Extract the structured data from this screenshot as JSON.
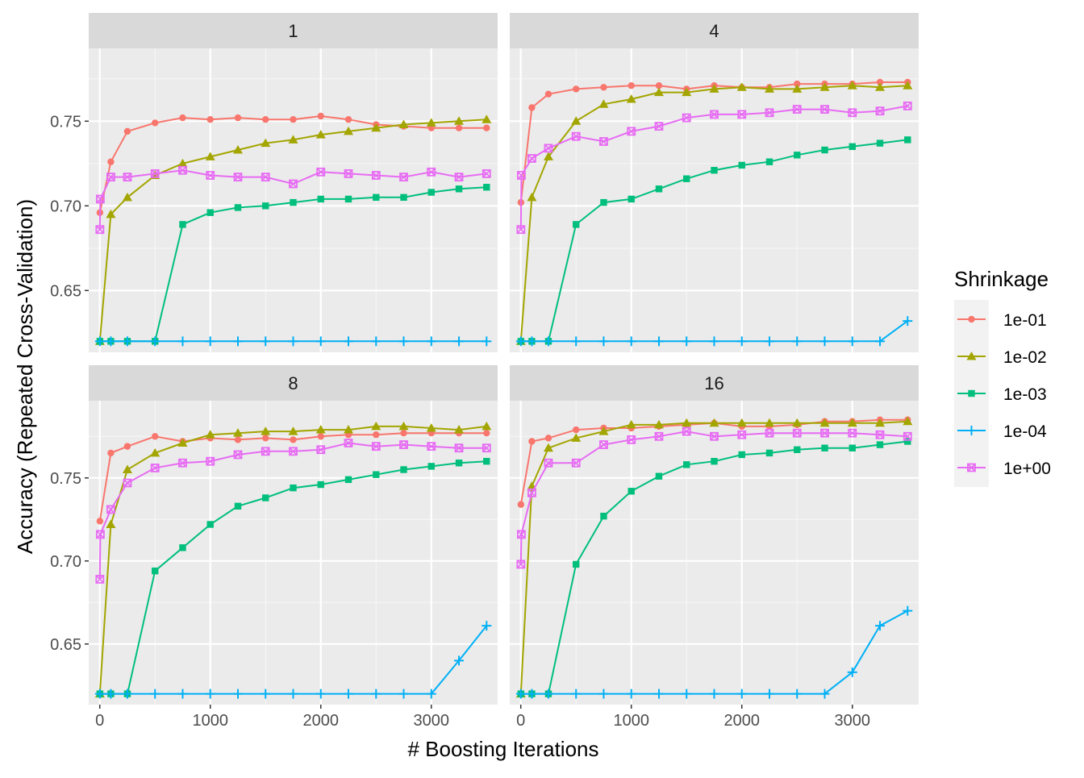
{
  "chart_data": {
    "type": "line",
    "ylabel": "Accuracy (Repeated Cross-Validation)",
    "xlabel": "# Boosting Iterations",
    "xlim": [
      -100,
      3600
    ],
    "x_ticks": [
      0,
      1000,
      2000,
      3000
    ],
    "x_tick_labels": [
      "0",
      "1000",
      "2000",
      "3000"
    ],
    "ylim_top": [
      0.6135,
      0.793
    ],
    "ylim_bottom": [
      0.6135,
      0.7965
    ],
    "y_ticks": [
      0.65,
      0.7,
      0.75
    ],
    "y_tick_labels": [
      "0.65",
      "0.70",
      "0.75"
    ],
    "grid": true,
    "legend": {
      "title": "Shrinkage",
      "position": "right",
      "entries": [
        "1e-01",
        "1e-02",
        "1e-03",
        "1e-04",
        "1e+00"
      ]
    },
    "series_style": {
      "1e-01": {
        "color": "#F8766D",
        "marker": "circle"
      },
      "1e-02": {
        "color": "#A3A500",
        "marker": "triangle"
      },
      "1e-03": {
        "color": "#00BF7D",
        "marker": "square"
      },
      "1e-04": {
        "color": "#00B0F6",
        "marker": "plus"
      },
      "1e+00": {
        "color": "#E76BF3",
        "marker": "square-x"
      }
    },
    "panels": [
      {
        "label": "1",
        "x": [
          1,
          5,
          10,
          25,
          50,
          100,
          250,
          500,
          750,
          1000,
          1250,
          1500,
          1750,
          2000,
          2250,
          2500,
          2750,
          3000,
          3250,
          3500
        ],
        "series": [
          {
            "name": "1e-01",
            "x": [
              1,
              100,
              250,
              500,
              750,
              1000,
              1250,
              1500,
              1750,
              2000,
              2250,
              2500,
              2750,
              3000,
              3250,
              3500
            ],
            "values": [
              0.696,
              0.726,
              0.744,
              0.749,
              0.752,
              0.751,
              0.752,
              0.751,
              0.751,
              0.753,
              0.751,
              0.748,
              0.747,
              0.746,
              0.746,
              0.746
            ]
          },
          {
            "name": "1e-02",
            "x": [
              1,
              100,
              250,
              500,
              750,
              1000,
              1250,
              1500,
              1750,
              2000,
              2250,
              2500,
              2750,
              3000,
              3250,
              3500
            ],
            "values": [
              0.62,
              0.695,
              0.705,
              0.718,
              0.725,
              0.729,
              0.733,
              0.737,
              0.739,
              0.742,
              0.744,
              0.746,
              0.748,
              0.749,
              0.75,
              0.751
            ]
          },
          {
            "name": "1e-03",
            "x": [
              1,
              100,
              250,
              500,
              750,
              1000,
              1250,
              1500,
              1750,
              2000,
              2250,
              2500,
              2750,
              3000,
              3250,
              3500
            ],
            "values": [
              0.62,
              0.62,
              0.62,
              0.62,
              0.689,
              0.696,
              0.699,
              0.7,
              0.702,
              0.704,
              0.704,
              0.705,
              0.705,
              0.708,
              0.71,
              0.711
            ]
          },
          {
            "name": "1e-04",
            "x": [
              1,
              100,
              250,
              500,
              750,
              1000,
              1250,
              1500,
              1750,
              2000,
              2250,
              2500,
              2750,
              3000,
              3250,
              3500
            ],
            "values": [
              0.62,
              0.62,
              0.62,
              0.62,
              0.62,
              0.62,
              0.62,
              0.62,
              0.62,
              0.62,
              0.62,
              0.62,
              0.62,
              0.62,
              0.62,
              0.62
            ]
          },
          {
            "name": "1e+00",
            "x": [
              1,
              5,
              100,
              250,
              500,
              750,
              1000,
              1250,
              1500,
              1750,
              2000,
              2250,
              2500,
              2750,
              3000,
              3250,
              3500
            ],
            "values": [
              0.686,
              0.704,
              0.717,
              0.717,
              0.719,
              0.721,
              0.718,
              0.717,
              0.717,
              0.713,
              0.72,
              0.719,
              0.718,
              0.717,
              0.72,
              0.717,
              0.719
            ]
          }
        ]
      },
      {
        "label": "4",
        "series": [
          {
            "name": "1e-01",
            "x": [
              1,
              100,
              250,
              500,
              750,
              1000,
              1250,
              1500,
              1750,
              2000,
              2250,
              2500,
              2750,
              3000,
              3250,
              3500
            ],
            "values": [
              0.702,
              0.758,
              0.766,
              0.769,
              0.77,
              0.771,
              0.771,
              0.769,
              0.771,
              0.77,
              0.77,
              0.772,
              0.772,
              0.772,
              0.773,
              0.773
            ]
          },
          {
            "name": "1e-02",
            "x": [
              1,
              100,
              250,
              500,
              750,
              1000,
              1250,
              1500,
              1750,
              2000,
              2250,
              2500,
              2750,
              3000,
              3250,
              3500
            ],
            "values": [
              0.62,
              0.705,
              0.729,
              0.75,
              0.76,
              0.763,
              0.767,
              0.767,
              0.769,
              0.77,
              0.769,
              0.769,
              0.77,
              0.771,
              0.77,
              0.771
            ]
          },
          {
            "name": "1e-03",
            "x": [
              1,
              100,
              250,
              500,
              750,
              1000,
              1250,
              1500,
              1750,
              2000,
              2250,
              2500,
              2750,
              3000,
              3250,
              3500
            ],
            "values": [
              0.62,
              0.62,
              0.62,
              0.689,
              0.702,
              0.704,
              0.71,
              0.716,
              0.721,
              0.724,
              0.726,
              0.73,
              0.733,
              0.735,
              0.737,
              0.739
            ]
          },
          {
            "name": "1e-04",
            "x": [
              1,
              100,
              250,
              500,
              750,
              1000,
              1250,
              1500,
              1750,
              2000,
              2250,
              2500,
              2750,
              3000,
              3250,
              3500
            ],
            "values": [
              0.62,
              0.62,
              0.62,
              0.62,
              0.62,
              0.62,
              0.62,
              0.62,
              0.62,
              0.62,
              0.62,
              0.62,
              0.62,
              0.62,
              0.62,
              0.632
            ]
          },
          {
            "name": "1e+00",
            "x": [
              1,
              5,
              100,
              250,
              500,
              750,
              1000,
              1250,
              1500,
              1750,
              2000,
              2250,
              2500,
              2750,
              3000,
              3250,
              3500
            ],
            "values": [
              0.686,
              0.718,
              0.728,
              0.734,
              0.741,
              0.738,
              0.744,
              0.747,
              0.752,
              0.754,
              0.754,
              0.755,
              0.757,
              0.757,
              0.755,
              0.756,
              0.759
            ]
          }
        ]
      },
      {
        "label": "8",
        "series": [
          {
            "name": "1e-01",
            "x": [
              1,
              100,
              250,
              500,
              750,
              1000,
              1250,
              1500,
              1750,
              2000,
              2250,
              2500,
              2750,
              3000,
              3250,
              3500
            ],
            "values": [
              0.724,
              0.765,
              0.769,
              0.775,
              0.772,
              0.774,
              0.773,
              0.774,
              0.773,
              0.775,
              0.776,
              0.776,
              0.777,
              0.777,
              0.777,
              0.777
            ]
          },
          {
            "name": "1e-02",
            "x": [
              1,
              100,
              250,
              500,
              750,
              1000,
              1250,
              1500,
              1750,
              2000,
              2250,
              2500,
              2750,
              3000,
              3250,
              3500
            ],
            "values": [
              0.62,
              0.722,
              0.755,
              0.765,
              0.771,
              0.776,
              0.777,
              0.778,
              0.778,
              0.779,
              0.779,
              0.781,
              0.781,
              0.78,
              0.779,
              0.781
            ]
          },
          {
            "name": "1e-03",
            "x": [
              1,
              100,
              250,
              500,
              750,
              1000,
              1250,
              1500,
              1750,
              2000,
              2250,
              2500,
              2750,
              3000,
              3250,
              3500
            ],
            "values": [
              0.62,
              0.62,
              0.62,
              0.694,
              0.708,
              0.722,
              0.733,
              0.738,
              0.744,
              0.746,
              0.749,
              0.752,
              0.755,
              0.757,
              0.759,
              0.76
            ]
          },
          {
            "name": "1e-04",
            "x": [
              1,
              100,
              250,
              500,
              750,
              1000,
              1250,
              1500,
              1750,
              2000,
              2250,
              2500,
              2750,
              3000,
              3250,
              3500
            ],
            "values": [
              0.62,
              0.62,
              0.62,
              0.62,
              0.62,
              0.62,
              0.62,
              0.62,
              0.62,
              0.62,
              0.62,
              0.62,
              0.62,
              0.62,
              0.64,
              0.661
            ]
          },
          {
            "name": "1e+00",
            "x": [
              1,
              5,
              100,
              250,
              500,
              750,
              1000,
              1250,
              1500,
              1750,
              2000,
              2250,
              2500,
              2750,
              3000,
              3250,
              3500
            ],
            "values": [
              0.689,
              0.716,
              0.731,
              0.747,
              0.756,
              0.759,
              0.76,
              0.764,
              0.766,
              0.766,
              0.767,
              0.771,
              0.769,
              0.77,
              0.769,
              0.768,
              0.768
            ]
          }
        ]
      },
      {
        "label": "16",
        "series": [
          {
            "name": "1e-01",
            "x": [
              1,
              100,
              250,
              500,
              750,
              1000,
              1250,
              1500,
              1750,
              2000,
              2250,
              2500,
              2750,
              3000,
              3250,
              3500
            ],
            "values": [
              0.734,
              0.772,
              0.774,
              0.779,
              0.78,
              0.78,
              0.781,
              0.782,
              0.783,
              0.781,
              0.781,
              0.782,
              0.784,
              0.784,
              0.785,
              0.785
            ]
          },
          {
            "name": "1e-02",
            "x": [
              1,
              100,
              250,
              500,
              750,
              1000,
              1250,
              1500,
              1750,
              2000,
              2250,
              2500,
              2750,
              3000,
              3250,
              3500
            ],
            "values": [
              0.62,
              0.745,
              0.768,
              0.774,
              0.778,
              0.782,
              0.782,
              0.783,
              0.783,
              0.783,
              0.783,
              0.783,
              0.783,
              0.783,
              0.783,
              0.784
            ]
          },
          {
            "name": "1e-03",
            "x": [
              1,
              100,
              250,
              500,
              750,
              1000,
              1250,
              1500,
              1750,
              2000,
              2250,
              2500,
              2750,
              3000,
              3250,
              3500
            ],
            "values": [
              0.62,
              0.62,
              0.62,
              0.698,
              0.727,
              0.742,
              0.751,
              0.758,
              0.76,
              0.764,
              0.765,
              0.767,
              0.768,
              0.768,
              0.77,
              0.772
            ]
          },
          {
            "name": "1e-04",
            "x": [
              1,
              100,
              250,
              500,
              750,
              1000,
              1250,
              1500,
              1750,
              2000,
              2250,
              2500,
              2750,
              3000,
              3250,
              3500
            ],
            "values": [
              0.62,
              0.62,
              0.62,
              0.62,
              0.62,
              0.62,
              0.62,
              0.62,
              0.62,
              0.62,
              0.62,
              0.62,
              0.62,
              0.633,
              0.661,
              0.67
            ]
          },
          {
            "name": "1e+00",
            "x": [
              1,
              5,
              100,
              250,
              500,
              750,
              1000,
              1250,
              1500,
              1750,
              2000,
              2250,
              2500,
              2750,
              3000,
              3250,
              3500
            ],
            "values": [
              0.698,
              0.716,
              0.741,
              0.759,
              0.759,
              0.77,
              0.773,
              0.775,
              0.778,
              0.775,
              0.776,
              0.777,
              0.777,
              0.777,
              0.777,
              0.776,
              0.775
            ]
          }
        ]
      }
    ]
  }
}
